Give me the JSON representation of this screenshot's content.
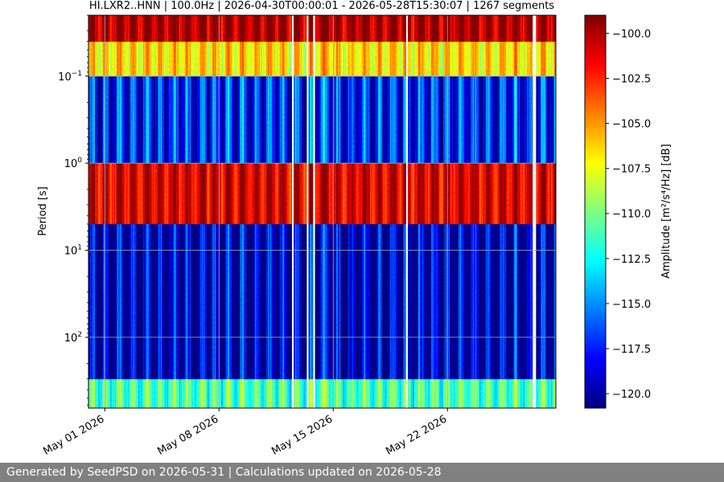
{
  "chart_data": {
    "type": "heatmap",
    "title": "HI.LXR2..HNN | 100.0Hz | 2026-04-30T00:00:01 - 2026-05-28T15:30:07 | 1267 segments",
    "ylabel": "Period [s]",
    "colorbar_label": "Amplitude [m²/s⁴/Hz] [dB]",
    "y_scale": "log",
    "y_inverted": true,
    "y_range_seconds": [
      0.02,
      650
    ],
    "y_ticks": [
      {
        "value": 0.1,
        "base": "10",
        "exp": "−1"
      },
      {
        "value": 1,
        "base": "10",
        "exp": "0"
      },
      {
        "value": 10,
        "base": "10",
        "exp": "1"
      },
      {
        "value": 100,
        "base": "10",
        "exp": "2"
      }
    ],
    "x_range": [
      "2026-04-30T00:00:01",
      "2026-05-28T15:30:07"
    ],
    "x_ticks": [
      "May 01 2026",
      "May 08 2026",
      "May 15 2026",
      "May 22 2026"
    ],
    "x_tick_dates": [
      "2026-05-01",
      "2026-05-08",
      "2026-05-15",
      "2026-05-22"
    ],
    "grid": true,
    "colormap": "jet",
    "color_range_db": [
      -120.8,
      -99.0
    ],
    "colorbar_ticks": [
      "−100.0",
      "−102.5",
      "−105.0",
      "−107.5",
      "−110.0",
      "−112.5",
      "−115.0",
      "−117.5",
      "−120.0"
    ],
    "colorbar_tick_values": [
      -100.0,
      -102.5,
      -105.0,
      -107.5,
      -110.0,
      -112.5,
      -115.0,
      -117.5,
      -120.0
    ],
    "data_gaps": [
      {
        "start": "2026-05-12T11:20",
        "end": "2026-05-12T12:50"
      },
      {
        "start": "2026-05-13T09:10",
        "end": "2026-05-13T10:20"
      },
      {
        "start": "2026-05-13T18:30",
        "end": "2026-05-13T21:10"
      },
      {
        "start": "2026-05-19T11:20",
        "end": "2026-05-19T12:50"
      },
      {
        "start": "2026-05-27T05:30",
        "end": "2026-05-27T10:20"
      }
    ],
    "bands": [
      {
        "period_s": [
          0.02,
          0.04
        ],
        "level_db": -99.8
      },
      {
        "period_s": [
          0.04,
          0.1
        ],
        "level_db": -106.5
      },
      {
        "period_s": [
          0.1,
          1.0
        ],
        "level_db": -117.5
      },
      {
        "period_s": [
          1.3,
          4.0
        ],
        "level_db": -101.0
      },
      {
        "period_s": [
          5.0,
          300
        ],
        "level_db": -119.5
      },
      {
        "period_s": [
          300,
          650
        ],
        "level_db": -111.0
      }
    ]
  },
  "footer": {
    "text": "Generated by SeedPSD on 2026-05-31 | Calculations updated on 2026-05-28"
  }
}
